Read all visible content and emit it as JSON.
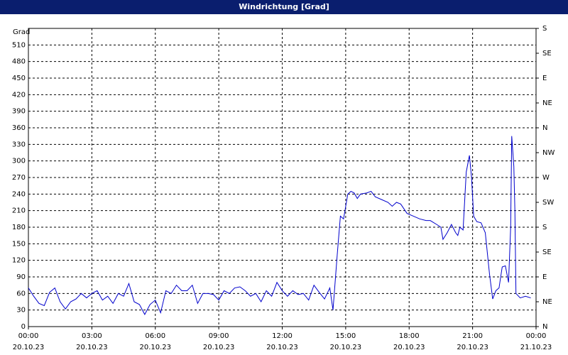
{
  "chart_data": {
    "type": "line",
    "title": "Windrichtung [Grad]",
    "y_label": "Grad",
    "xlim": [
      0,
      24
    ],
    "xticks": [
      {
        "value": 0,
        "label": "00:00",
        "date": "20.10.23"
      },
      {
        "value": 3,
        "label": "03:00",
        "date": "20.10.23"
      },
      {
        "value": 6,
        "label": "06:00",
        "date": "20.10.23"
      },
      {
        "value": 9,
        "label": "09:00",
        "date": "20.10.23"
      },
      {
        "value": 12,
        "label": "12:00",
        "date": "20.10.23"
      },
      {
        "value": 15,
        "label": "15:00",
        "date": "20.10.23"
      },
      {
        "value": 18,
        "label": "18:00",
        "date": "20.10.23"
      },
      {
        "value": 21,
        "label": "21:00",
        "date": "20.10.23"
      },
      {
        "value": 24,
        "label": "00:00",
        "date": "21.10.23"
      }
    ],
    "ylim": [
      0,
      540
    ],
    "yticks": [
      0,
      30,
      60,
      90,
      120,
      150,
      180,
      210,
      240,
      270,
      300,
      330,
      360,
      390,
      420,
      450,
      480,
      510
    ],
    "y2lim": [
      0,
      540
    ],
    "y2ticks": [
      {
        "value": 0,
        "label": "N"
      },
      {
        "value": 45,
        "label": "NE"
      },
      {
        "value": 90,
        "label": "E"
      },
      {
        "value": 135,
        "label": "SE"
      },
      {
        "value": 180,
        "label": "S"
      },
      {
        "value": 225,
        "label": "SW"
      },
      {
        "value": 270,
        "label": "W"
      },
      {
        "value": 315,
        "label": "NW"
      },
      {
        "value": 360,
        "label": "N"
      },
      {
        "value": 405,
        "label": "NE"
      },
      {
        "value": 450,
        "label": "E"
      },
      {
        "value": 495,
        "label": "SE"
      },
      {
        "value": 540,
        "label": "S"
      }
    ],
    "grid": true,
    "x": [
      0,
      0.25,
      0.5,
      0.75,
      1,
      1.25,
      1.5,
      1.75,
      2,
      2.25,
      2.5,
      2.75,
      3,
      3.25,
      3.5,
      3.75,
      4,
      4.25,
      4.5,
      4.75,
      5,
      5.25,
      5.5,
      5.75,
      6,
      6.25,
      6.5,
      6.75,
      7,
      7.25,
      7.5,
      7.75,
      8,
      8.25,
      8.5,
      8.75,
      9,
      9.25,
      9.5,
      9.75,
      10,
      10.25,
      10.5,
      10.75,
      11,
      11.25,
      11.5,
      11.75,
      12,
      12.25,
      12.5,
      12.75,
      13,
      13.25,
      13.5,
      13.75,
      14,
      14.25,
      14.4,
      14.6,
      14.75,
      14.9,
      15.1,
      15.25,
      15.4,
      15.55,
      15.7,
      16,
      16.2,
      16.4,
      16.7,
      17,
      17.2,
      17.4,
      17.6,
      17.9,
      18.2,
      18.5,
      18.8,
      19,
      19.3,
      19.5,
      19.6,
      19.8,
      20,
      20.2,
      20.3,
      20.4,
      20.55,
      20.7,
      20.85,
      20.95,
      21.05,
      21.2,
      21.4,
      21.6,
      21.8,
      21.95,
      22.1,
      22.25,
      22.4,
      22.55,
      22.7,
      22.8,
      22.85,
      22.95,
      23,
      23.05,
      23.25,
      23.5,
      23.75
    ],
    "series": [
      {
        "name": "Windrichtung",
        "color": "#0000cc",
        "values": [
          70,
          55,
          42,
          38,
          62,
          70,
          45,
          32,
          45,
          50,
          60,
          52,
          60,
          65,
          48,
          55,
          42,
          60,
          55,
          78,
          45,
          40,
          22,
          40,
          48,
          25,
          65,
          60,
          75,
          65,
          65,
          75,
          42,
          60,
          60,
          58,
          48,
          65,
          60,
          70,
          72,
          65,
          55,
          60,
          45,
          65,
          55,
          80,
          65,
          55,
          65,
          58,
          60,
          48,
          75,
          62,
          50,
          70,
          30,
          130,
          200,
          195,
          240,
          245,
          242,
          232,
          240,
          242,
          245,
          235,
          230,
          225,
          218,
          225,
          222,
          205,
          200,
          195,
          192,
          192,
          185,
          180,
          158,
          170,
          185,
          170,
          165,
          180,
          175,
          280,
          310,
          270,
          200,
          190,
          188,
          170,
          95,
          50,
          65,
          70,
          108,
          110,
          80,
          180,
          345,
          290,
          210,
          60,
          52,
          55,
          52
        ]
      }
    ]
  }
}
